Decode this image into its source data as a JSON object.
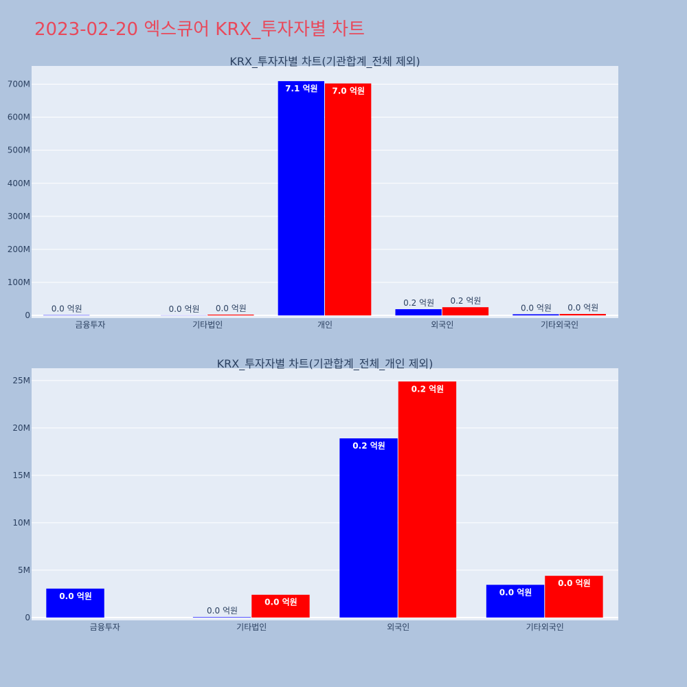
{
  "page": {
    "title": "2023-02-20 엑스큐어 KRX_투자자별 차트"
  },
  "colors": {
    "series_a": "#0000ff",
    "series_b": "#ff0000",
    "plot_bg": "#e5ecf6",
    "page_bg": "#b0c4de",
    "title": "#e8495b"
  },
  "chart_data": [
    {
      "type": "bar",
      "title": "KRX_투자자별 차트(기관합계_전체 제외)",
      "categories": [
        "금융투자",
        "기타법인",
        "개인",
        "외국인",
        "기타외국인"
      ],
      "series": [
        {
          "values": [
            1000000,
            500000,
            709000000,
            18900000,
            3500000
          ],
          "labels": [
            "0.0 억원",
            "0.0 억원",
            "7.1 억원",
            "0.2 억원",
            "0.0 억원"
          ]
        },
        {
          "values": [
            0,
            2500000,
            702000000,
            24900000,
            4500000
          ],
          "labels": [
            "",
            "0.0 억원",
            "7.0 억원",
            "0.2 억원",
            "0.0 억원"
          ]
        }
      ],
      "yticks": [
        0,
        100000000,
        200000000,
        300000000,
        400000000,
        500000000,
        600000000,
        700000000
      ],
      "ytick_labels": [
        "0",
        "100M",
        "200M",
        "300M",
        "400M",
        "500M",
        "600M",
        "700M"
      ],
      "ylim": [
        -8000000,
        755000000
      ],
      "grid": true
    },
    {
      "type": "bar",
      "title": "KRX_투자자별 차트(기관합계_전체_개인 제외)",
      "categories": [
        "금융투자",
        "기타법인",
        "외국인",
        "기타외국인"
      ],
      "series": [
        {
          "values": [
            3050000,
            50000,
            18900000,
            3450000
          ],
          "labels": [
            "0.0 억원",
            "0.0 억원",
            "0.2 억원",
            "0.0 억원"
          ]
        },
        {
          "values": [
            0,
            2400000,
            24900000,
            4400000
          ],
          "labels": [
            "",
            "0.0 억원",
            "0.2 억원",
            "0.0 억원"
          ]
        }
      ],
      "yticks": [
        0,
        5000000,
        10000000,
        15000000,
        20000000,
        25000000
      ],
      "ytick_labels": [
        "0",
        "5M",
        "10M",
        "15M",
        "20M",
        "25M"
      ],
      "ylim": [
        -300000,
        26300000
      ],
      "grid": true
    }
  ]
}
